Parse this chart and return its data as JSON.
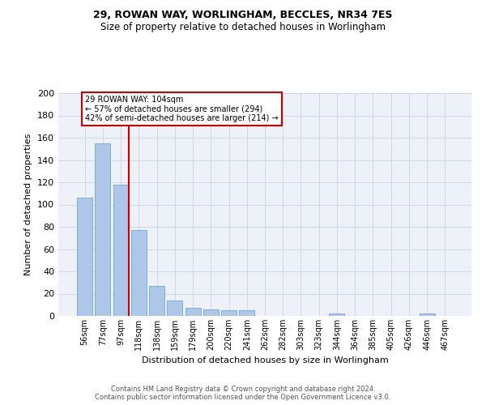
{
  "title1": "29, ROWAN WAY, WORLINGHAM, BECCLES, NR34 7ES",
  "title2": "Size of property relative to detached houses in Worlingham",
  "xlabel": "Distribution of detached houses by size in Worlingham",
  "ylabel": "Number of detached properties",
  "footer1": "Contains HM Land Registry data © Crown copyright and database right 2024.",
  "footer2": "Contains public sector information licensed under the Open Government Licence v3.0.",
  "annotation_line1": "29 ROWAN WAY: 104sqm",
  "annotation_line2": "← 57% of detached houses are smaller (294)",
  "annotation_line3": "42% of semi-detached houses are larger (214) →",
  "categories": [
    "56sqm",
    "77sqm",
    "97sqm",
    "118sqm",
    "138sqm",
    "159sqm",
    "179sqm",
    "200sqm",
    "220sqm",
    "241sqm",
    "262sqm",
    "282sqm",
    "303sqm",
    "323sqm",
    "344sqm",
    "364sqm",
    "385sqm",
    "405sqm",
    "426sqm",
    "446sqm",
    "467sqm"
  ],
  "values": [
    106,
    155,
    118,
    77,
    27,
    14,
    7,
    6,
    5,
    5,
    0,
    0,
    0,
    0,
    2,
    0,
    0,
    0,
    0,
    2,
    0
  ],
  "bar_color": "#aec6e8",
  "bar_edge_color": "#5a9fd4",
  "vline_color": "#cc0000",
  "annotation_box_color": "#cc0000",
  "bg_color": "#eef2f8",
  "grid_color": "#c8d4e8",
  "ylim": [
    0,
    200
  ],
  "yticks": [
    0,
    20,
    40,
    60,
    80,
    100,
    120,
    140,
    160,
    180,
    200
  ],
  "title1_fontsize": 9,
  "title2_fontsize": 8.5,
  "ylabel_fontsize": 8,
  "xlabel_fontsize": 8,
  "tick_fontsize": 7,
  "annotation_fontsize": 7,
  "footer_fontsize": 6
}
